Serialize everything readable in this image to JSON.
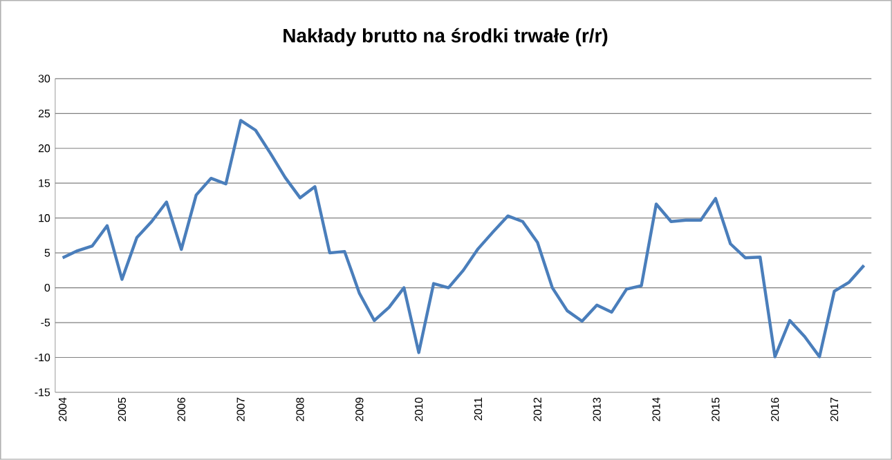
{
  "chart_data": {
    "type": "line",
    "title": "Nakłady brutto na środki trwałe (r/r)",
    "categories": [
      "2004",
      null,
      null,
      null,
      "2005",
      null,
      null,
      null,
      "2006",
      null,
      null,
      null,
      "2007",
      null,
      null,
      null,
      "2008",
      null,
      null,
      null,
      "2009",
      null,
      null,
      null,
      "2010",
      null,
      null,
      null,
      "2011",
      null,
      null,
      null,
      "2012",
      null,
      null,
      null,
      "2013",
      null,
      null,
      null,
      "2014",
      null,
      null,
      null,
      "2015",
      null,
      null,
      null,
      "2016",
      null,
      null,
      null,
      "2017",
      null,
      null
    ],
    "series": [
      {
        "color": "#4a7ebb",
        "values": [
          4.3,
          5.3,
          6.0,
          8.9,
          1.2,
          7.2,
          9.5,
          12.3,
          5.5,
          13.3,
          15.7,
          14.9,
          24.0,
          22.6,
          19.3,
          15.8,
          12.9,
          14.5,
          5.0,
          5.2,
          -0.8,
          -4.7,
          -2.8,
          0.0,
          -9.3,
          0.6,
          0.0,
          2.5,
          5.6,
          8.0,
          10.3,
          9.5,
          6.5,
          0.0,
          -3.3,
          -4.8,
          -2.5,
          -3.5,
          -0.2,
          0.3,
          12.0,
          9.5,
          9.7,
          9.7,
          12.8,
          6.3,
          4.3,
          4.4,
          -9.9,
          -4.7,
          -7.0,
          -9.9,
          -0.5,
          0.8,
          3.2
        ]
      }
    ],
    "ylim": [
      -15,
      30
    ],
    "yticks": [
      -15,
      -10,
      -5,
      0,
      5,
      10,
      15,
      20,
      25,
      30
    ],
    "grid": "y",
    "marker": "none",
    "line_style": "solid"
  }
}
